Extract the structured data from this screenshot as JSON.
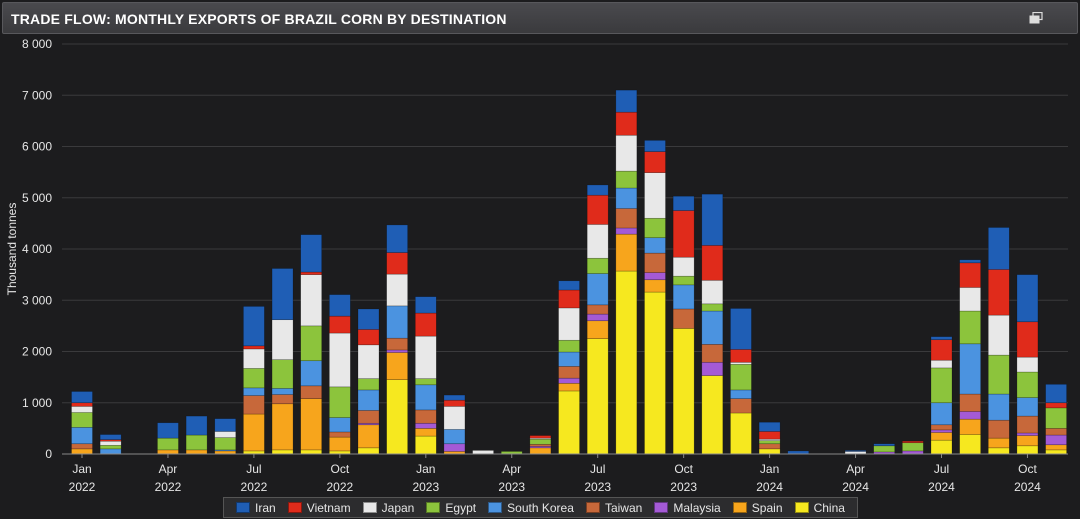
{
  "title": "TRADE FLOW: MONTHLY EXPORTS OF BRAZIL CORN BY DESTINATION",
  "expand_icon": "expand-icon",
  "colors": {
    "Iran": "#1f5eb5",
    "Vietnam": "#e02b1b",
    "Japan": "#e8e8e8",
    "Egypt": "#8cc43c",
    "South Korea": "#4b93e0",
    "Taiwan": "#c7683a",
    "Malaysia": "#a45ad6",
    "Spain": "#f7a51c",
    "China": "#f6e81f"
  },
  "chart_data": {
    "type": "bar",
    "stacked": true,
    "ylabel": "Thousand tonnes",
    "ylim": [
      0,
      8000
    ],
    "yticks": [
      0,
      1000,
      2000,
      3000,
      4000,
      5000,
      6000,
      7000,
      8000
    ],
    "ytick_labels": [
      "0",
      "1 000",
      "2 000",
      "3 000",
      "4 000",
      "5 000",
      "6 000",
      "7 000",
      "8 000"
    ],
    "categories": [
      "Jan 2022",
      "Feb 2022",
      "Mar 2022",
      "Apr 2022",
      "May 2022",
      "Jun 2022",
      "Jul 2022",
      "Aug 2022",
      "Sep 2022",
      "Oct 2022",
      "Nov 2022",
      "Dec 2022",
      "Jan 2023",
      "Feb 2023",
      "Mar 2023",
      "Apr 2023",
      "May 2023",
      "Jun 2023",
      "Jul 2023",
      "Aug 2023",
      "Sep 2023",
      "Oct 2023",
      "Nov 2023",
      "Dec 2023",
      "Jan 2024",
      "Feb 2024",
      "Mar 2024",
      "Apr 2024",
      "May 2024",
      "Jun 2024",
      "Jul 2024",
      "Aug 2024",
      "Sep 2024",
      "Oct 2024",
      "Nov 2024"
    ],
    "xtick_labels": [
      {
        "index": 0,
        "month": "Jan",
        "year": "2022"
      },
      {
        "index": 3,
        "month": "Apr",
        "year": "2022"
      },
      {
        "index": 6,
        "month": "Jul",
        "year": "2022"
      },
      {
        "index": 9,
        "month": "Oct",
        "year": "2022"
      },
      {
        "index": 12,
        "month": "Jan",
        "year": "2023"
      },
      {
        "index": 15,
        "month": "Apr",
        "year": "2023"
      },
      {
        "index": 18,
        "month": "Jul",
        "year": "2023"
      },
      {
        "index": 21,
        "month": "Oct",
        "year": "2023"
      },
      {
        "index": 24,
        "month": "Jan",
        "year": "2024"
      },
      {
        "index": 27,
        "month": "Apr",
        "year": "2024"
      },
      {
        "index": 30,
        "month": "Jul",
        "year": "2024"
      },
      {
        "index": 33,
        "month": "Oct",
        "year": "2024"
      }
    ],
    "series": [
      {
        "name": "China",
        "values": [
          0,
          0,
          0,
          0,
          0,
          0,
          60,
          80,
          80,
          60,
          120,
          1450,
          350,
          0,
          0,
          0,
          0,
          1230,
          2250,
          3570,
          3160,
          2450,
          1530,
          800,
          100,
          0,
          0,
          0,
          0,
          0,
          270,
          380,
          120,
          160,
          80
        ]
      },
      {
        "name": "Spain",
        "values": [
          100,
          0,
          0,
          80,
          80,
          60,
          720,
          900,
          1000,
          270,
          450,
          530,
          150,
          50,
          0,
          0,
          120,
          150,
          350,
          720,
          240,
          0,
          0,
          0,
          0,
          0,
          0,
          0,
          0,
          0,
          150,
          300,
          190,
          200,
          100
        ]
      },
      {
        "name": "Malaysia",
        "values": [
          0,
          0,
          0,
          0,
          0,
          0,
          0,
          0,
          0,
          0,
          30,
          50,
          100,
          150,
          0,
          0,
          30,
          100,
          130,
          120,
          140,
          0,
          260,
          0,
          0,
          0,
          0,
          0,
          40,
          60,
          50,
          150,
          0,
          50,
          190
        ]
      },
      {
        "name": "Taiwan",
        "values": [
          100,
          0,
          0,
          0,
          0,
          0,
          360,
          180,
          250,
          100,
          250,
          230,
          260,
          0,
          0,
          0,
          40,
          230,
          180,
          380,
          380,
          380,
          350,
          280,
          100,
          0,
          0,
          0,
          0,
          0,
          100,
          340,
          350,
          330,
          130
        ]
      },
      {
        "name": "South Korea",
        "values": [
          320,
          100,
          0,
          0,
          0,
          20,
          150,
          120,
          490,
          280,
          400,
          630,
          490,
          280,
          0,
          0,
          0,
          280,
          610,
          400,
          300,
          470,
          650,
          170,
          0,
          0,
          0,
          0,
          0,
          0,
          430,
          980,
          510,
          360,
          0
        ]
      },
      {
        "name": "Egypt",
        "values": [
          290,
          70,
          0,
          230,
          290,
          240,
          380,
          560,
          680,
          600,
          220,
          0,
          120,
          0,
          0,
          50,
          100,
          230,
          300,
          330,
          380,
          170,
          140,
          500,
          60,
          0,
          0,
          0,
          120,
          160,
          680,
          640,
          760,
          500,
          400
        ]
      },
      {
        "name": "Japan",
        "values": [
          120,
          80,
          0,
          0,
          0,
          120,
          380,
          780,
          1000,
          1050,
          660,
          620,
          830,
          450,
          70,
          0,
          20,
          630,
          660,
          700,
          890,
          370,
          460,
          40,
          30,
          0,
          0,
          50,
          0,
          0,
          150,
          460,
          780,
          290,
          0
        ]
      },
      {
        "name": "Vietnam",
        "values": [
          70,
          30,
          0,
          0,
          0,
          0,
          60,
          0,
          50,
          330,
          300,
          420,
          450,
          120,
          0,
          0,
          50,
          350,
          570,
          450,
          410,
          910,
          680,
          250,
          150,
          0,
          0,
          0,
          0,
          30,
          400,
          480,
          890,
          690,
          100
        ]
      },
      {
        "name": "Iran",
        "values": [
          220,
          100,
          0,
          300,
          370,
          250,
          770,
          1000,
          730,
          420,
          400,
          540,
          320,
          100,
          0,
          0,
          0,
          180,
          200,
          430,
          220,
          280,
          1000,
          800,
          180,
          60,
          0,
          20,
          40,
          0,
          60,
          60,
          820,
          920,
          360
        ]
      }
    ],
    "legend": [
      "Iran",
      "Vietnam",
      "Japan",
      "Egypt",
      "South Korea",
      "Taiwan",
      "Malaysia",
      "Spain",
      "China"
    ],
    "legend_position": "bottom",
    "grid": "horizontal"
  }
}
